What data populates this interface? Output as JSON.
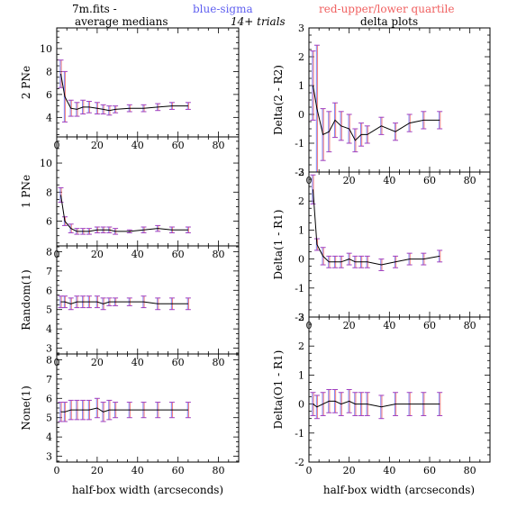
{
  "header": {
    "left_title": "7m.fits  -",
    "left_subtitle": "average medians",
    "center_title": "blue-sigma",
    "center_subtitle": "14+ trials",
    "right_title": "red-upper/lower quartile",
    "right_subtitle": "delta plots"
  },
  "colors": {
    "sigma": "#6060f0",
    "quartile": "#f06060",
    "line": "#000000"
  },
  "xlabel": "half-box width (arcseconds)",
  "chart_data": [
    {
      "type": "line",
      "id": "left-0",
      "ylabel": "2 PNe",
      "xlim": [
        0,
        90
      ],
      "ylim": [
        2.3,
        11.8
      ],
      "xticks": [
        "0",
        "20",
        "40",
        "60",
        "80"
      ],
      "yticks": [
        "4",
        "6",
        "8",
        "10"
      ],
      "x": [
        2,
        4,
        7,
        10,
        13,
        16,
        20,
        23,
        26,
        29,
        36,
        43,
        50,
        57,
        65
      ],
      "y": [
        7.8,
        5.8,
        4.8,
        4.7,
        4.9,
        4.9,
        4.8,
        4.7,
        4.6,
        4.7,
        4.8,
        4.8,
        4.9,
        5.0,
        5.0
      ],
      "err": [
        1.2,
        2.2,
        0.7,
        0.6,
        0.6,
        0.5,
        0.5,
        0.4,
        0.4,
        0.3,
        0.3,
        0.3,
        0.3,
        0.3,
        0.3
      ]
    },
    {
      "type": "line",
      "id": "left-1",
      "ylabel": "1 PNe",
      "xlim": [
        0,
        90
      ],
      "ylim": [
        4.3,
        11.8
      ],
      "xticks": [
        "0",
        "20",
        "40",
        "60",
        "80"
      ],
      "yticks": [
        "6",
        "8",
        "10"
      ],
      "x": [
        2,
        4,
        7,
        10,
        13,
        16,
        20,
        23,
        26,
        29,
        36,
        43,
        50,
        57,
        65
      ],
      "y": [
        7.8,
        6.0,
        5.5,
        5.3,
        5.3,
        5.3,
        5.4,
        5.4,
        5.4,
        5.3,
        5.3,
        5.4,
        5.5,
        5.4,
        5.4
      ],
      "err": [
        0.5,
        0.3,
        0.3,
        0.2,
        0.2,
        0.2,
        0.2,
        0.2,
        0.2,
        0.2,
        0.1,
        0.2,
        0.2,
        0.2,
        0.2
      ]
    },
    {
      "type": "line",
      "id": "left-2",
      "ylabel": "Random(1)",
      "xlim": [
        0,
        90
      ],
      "ylim": [
        2.7,
        8.3
      ],
      "xticks": [
        "0",
        "20",
        "40",
        "60",
        "80"
      ],
      "yticks": [
        "3",
        "4",
        "5",
        "6",
        "7",
        "8"
      ],
      "x": [
        2,
        4,
        7,
        10,
        13,
        16,
        20,
        23,
        26,
        29,
        36,
        43,
        50,
        57,
        65
      ],
      "y": [
        5.4,
        5.4,
        5.3,
        5.4,
        5.4,
        5.4,
        5.4,
        5.3,
        5.4,
        5.4,
        5.4,
        5.4,
        5.3,
        5.3,
        5.3
      ],
      "err": [
        0.3,
        0.3,
        0.3,
        0.3,
        0.3,
        0.3,
        0.3,
        0.3,
        0.2,
        0.2,
        0.2,
        0.3,
        0.3,
        0.3,
        0.3
      ]
    },
    {
      "type": "line",
      "id": "left-3",
      "ylabel": "None(1)",
      "xlim": [
        0,
        90
      ],
      "ylim": [
        2.7,
        8.3
      ],
      "xticks": [
        "0",
        "20",
        "40",
        "60",
        "80"
      ],
      "yticks": [
        "3",
        "4",
        "5",
        "6",
        "7",
        "8"
      ],
      "x": [
        2,
        4,
        7,
        10,
        13,
        16,
        20,
        23,
        26,
        29,
        36,
        43,
        50,
        57,
        65
      ],
      "y": [
        5.3,
        5.3,
        5.4,
        5.4,
        5.4,
        5.4,
        5.5,
        5.3,
        5.4,
        5.4,
        5.4,
        5.4,
        5.4,
        5.4,
        5.4
      ],
      "err": [
        0.5,
        0.5,
        0.5,
        0.5,
        0.5,
        0.5,
        0.5,
        0.5,
        0.5,
        0.4,
        0.4,
        0.4,
        0.4,
        0.4,
        0.4
      ]
    },
    {
      "type": "line",
      "id": "right-0",
      "ylabel": "Delta(2 - R2)",
      "xlim": [
        0,
        90
      ],
      "ylim": [
        -2,
        3
      ],
      "xticks": [
        "0",
        "20",
        "40",
        "60",
        "80"
      ],
      "yticks": [
        "-2",
        "-1",
        "0",
        "1",
        "2",
        "3"
      ],
      "x": [
        2,
        4,
        7,
        10,
        13,
        16,
        20,
        23,
        26,
        29,
        36,
        43,
        50,
        57,
        65
      ],
      "y": [
        1.0,
        0.2,
        -0.7,
        -0.6,
        -0.2,
        -0.4,
        -0.5,
        -0.9,
        -0.7,
        -0.7,
        -0.4,
        -0.6,
        -0.3,
        -0.2,
        -0.2
      ],
      "err": [
        1.2,
        2.2,
        0.9,
        0.7,
        0.6,
        0.5,
        0.5,
        0.4,
        0.4,
        0.3,
        0.3,
        0.3,
        0.3,
        0.3,
        0.3
      ]
    },
    {
      "type": "line",
      "id": "right-1",
      "ylabel": "Delta(1 - R1)",
      "xlim": [
        0,
        90
      ],
      "ylim": [
        -2,
        3
      ],
      "xticks": [
        "0",
        "20",
        "40",
        "60",
        "80"
      ],
      "yticks": [
        "-2",
        "-1",
        "0",
        "1",
        "2",
        "3"
      ],
      "x": [
        2,
        4,
        7,
        10,
        13,
        16,
        20,
        23,
        26,
        29,
        36,
        43,
        50,
        57,
        65
      ],
      "y": [
        2.4,
        0.5,
        0.1,
        -0.1,
        -0.1,
        -0.1,
        0.0,
        -0.1,
        -0.1,
        -0.1,
        -0.2,
        -0.1,
        0.0,
        0.0,
        0.1
      ],
      "err": [
        0.5,
        0.2,
        0.3,
        0.2,
        0.2,
        0.2,
        0.2,
        0.2,
        0.2,
        0.2,
        0.2,
        0.2,
        0.2,
        0.2,
        0.2
      ]
    },
    {
      "type": "line",
      "id": "right-2",
      "ylabel": "Delta(O1 - R1)",
      "xlim": [
        0,
        90
      ],
      "ylim": [
        -2,
        3
      ],
      "xticks": [
        "0",
        "20",
        "40",
        "60",
        "80"
      ],
      "yticks": [
        "-2",
        "-1",
        "0",
        "1",
        "2",
        "3"
      ],
      "x": [
        2,
        4,
        7,
        10,
        13,
        16,
        20,
        23,
        26,
        29,
        36,
        43,
        50,
        57,
        65
      ],
      "y": [
        0.0,
        -0.1,
        0.0,
        0.1,
        0.1,
        0.0,
        0.1,
        0.0,
        0.0,
        0.0,
        -0.1,
        0.0,
        0.0,
        0.0,
        0.0
      ],
      "err": [
        0.4,
        0.4,
        0.4,
        0.4,
        0.4,
        0.4,
        0.4,
        0.4,
        0.4,
        0.4,
        0.4,
        0.4,
        0.4,
        0.4,
        0.4
      ]
    }
  ]
}
